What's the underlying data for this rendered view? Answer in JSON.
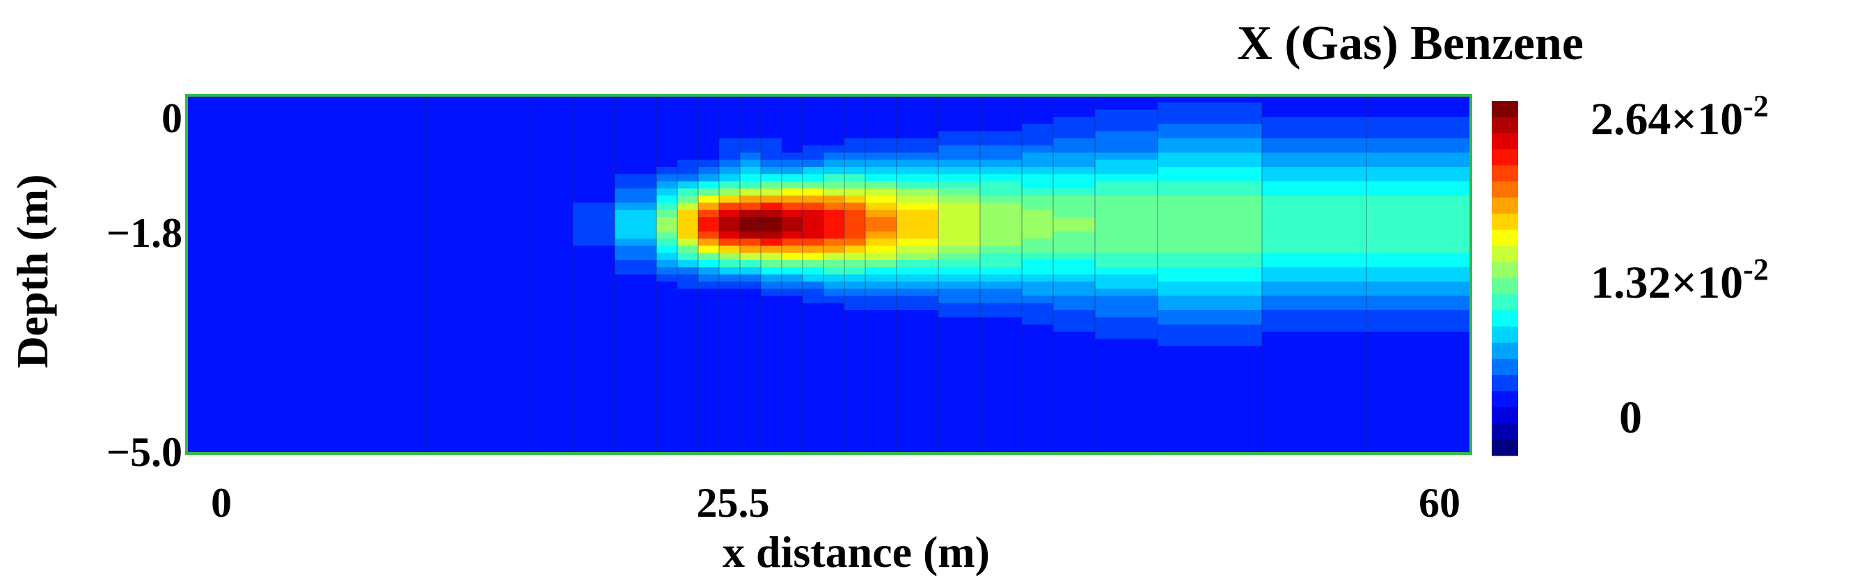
{
  "chart_data": {
    "type": "heatmap",
    "title": "X  (Gas) Benzene",
    "xlabel": "x distance (m)",
    "ylabel": "Depth (m)",
    "xlim": [
      0,
      60
    ],
    "ylim": [
      -5.0,
      0
    ],
    "x_ticks": [
      "0",
      "25.5",
      "60"
    ],
    "y_ticks": [
      "0",
      "−1.8",
      "−5.0"
    ],
    "x_tick_values": [
      0,
      25.5,
      60
    ],
    "y_tick_values": [
      0,
      -1.8,
      -5.0
    ],
    "colorbar": {
      "range": [
        0,
        0.0264
      ],
      "labels": [
        {
          "value": 0.0264,
          "base": "2.64×10",
          "exp": "-2"
        },
        {
          "value": 0.0132,
          "base": "1.32×10",
          "exp": "-2"
        },
        {
          "value": 0,
          "base": "0",
          "exp": ""
        }
      ],
      "colormap": "jet",
      "bands": 22
    },
    "grid_columns_x": [
      0,
      10,
      15,
      17,
      19,
      21,
      22,
      23,
      24,
      25,
      26,
      27,
      28,
      29,
      30,
      31,
      32.5,
      34.5,
      36.5,
      38.5,
      40,
      42,
      45,
      50,
      55,
      60
    ],
    "plume": {
      "peak_value": 0.0264,
      "peak_x": 25.5,
      "peak_depth": -1.8,
      "extent_x": [
        15.5,
        60
      ],
      "extent_depth": [
        -3.5,
        -0.1
      ]
    }
  }
}
